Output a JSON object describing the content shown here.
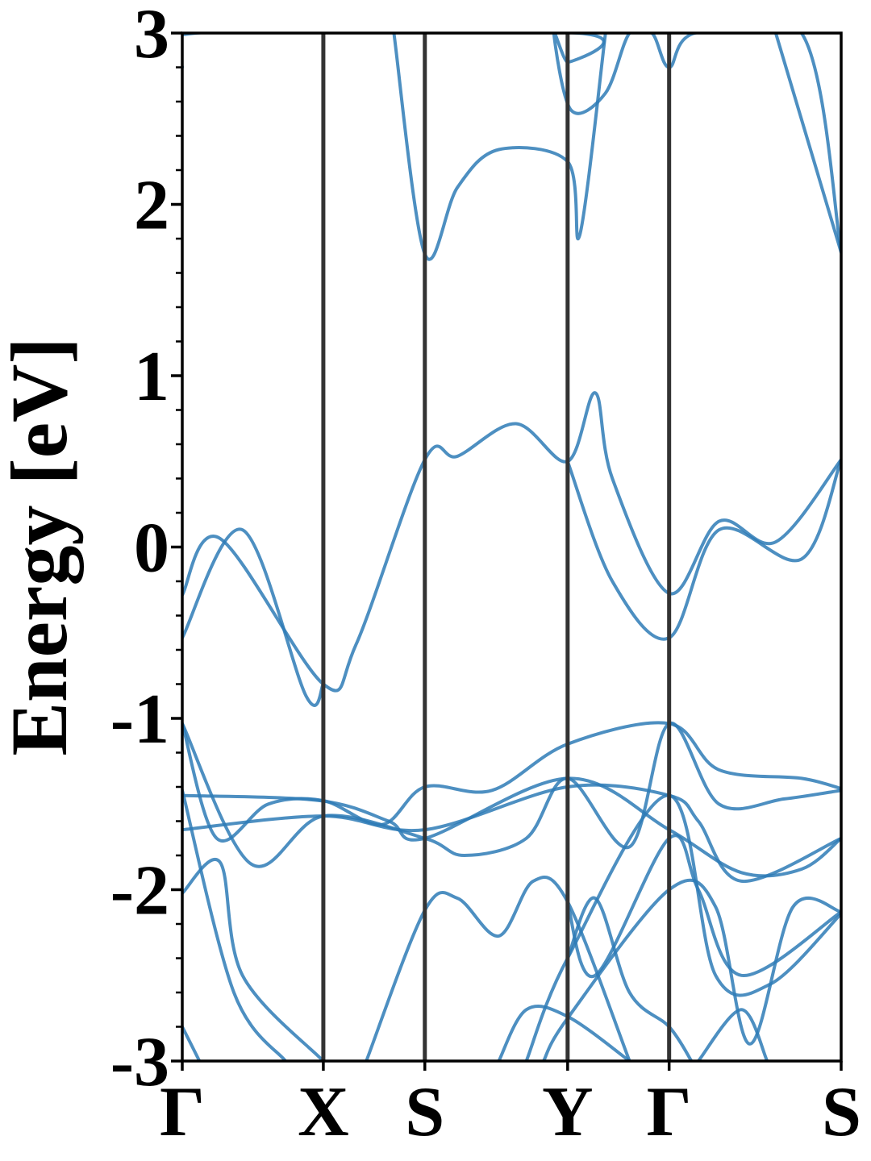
{
  "chart_data": {
    "type": "line",
    "title": "",
    "xlabel": "",
    "ylabel": "Energy [eV]",
    "ylim": [
      -3,
      3
    ],
    "yticks": [
      "3",
      "2",
      "1",
      "0",
      "-1",
      "-2",
      "-3"
    ],
    "ytick_values": [
      3,
      2,
      1,
      0,
      -1,
      -2,
      -3
    ],
    "x_range": [
      0,
      3.83
    ],
    "k_labels": [
      {
        "label": "Γ",
        "x": 0
      },
      {
        "label": "X",
        "x": 0.82
      },
      {
        "label": "S",
        "x": 1.41
      },
      {
        "label": "Y",
        "x": 2.24
      },
      {
        "label": "Γ",
        "x": 2.83
      },
      {
        "label": "S",
        "x": 3.83
      }
    ],
    "grid": false,
    "legend": "none",
    "line_color": "#2e7bb6",
    "series": [
      {
        "values": [
          [
            0.0,
            2.8
          ],
          [
            0.08,
            3.0
          ],
          [
            2.3,
            3.0
          ],
          [
            2.24,
            2.83
          ],
          [
            2.16,
            3.0
          ],
          [
            2.26,
            2.55
          ],
          [
            2.46,
            2.65
          ],
          [
            2.6,
            3.0
          ],
          [
            2.73,
            3.0
          ],
          [
            2.83,
            2.8
          ],
          [
            2.98,
            3.0
          ],
          [
            3.6,
            3.0
          ],
          [
            3.83,
            1.72
          ]
        ]
      },
      {
        "values": [
          [
            1.23,
            3.0
          ],
          [
            1.41,
            1.71
          ],
          [
            1.6,
            2.1
          ],
          [
            1.84,
            2.32
          ],
          [
            2.24,
            2.25
          ],
          [
            2.31,
            1.82
          ],
          [
            2.46,
            3.0
          ]
        ]
      },
      {
        "values": [
          [
            3.45,
            3.0
          ],
          [
            3.83,
            1.72
          ]
        ]
      },
      {
        "values": [
          [
            0.0,
            -0.28
          ],
          [
            0.22,
            0.05
          ],
          [
            0.82,
            -0.8
          ],
          [
            1.01,
            -0.57
          ],
          [
            1.41,
            0.51
          ],
          [
            1.6,
            0.53
          ],
          [
            1.94,
            0.72
          ],
          [
            2.24,
            0.5
          ],
          [
            2.4,
            0.9
          ],
          [
            2.5,
            0.4
          ],
          [
            2.83,
            -0.27
          ],
          [
            3.12,
            0.15
          ],
          [
            3.45,
            0.03
          ],
          [
            3.83,
            0.51
          ]
        ]
      },
      {
        "values": [
          [
            0.0,
            -0.53
          ],
          [
            0.35,
            0.1
          ],
          [
            0.72,
            -0.87
          ],
          [
            0.82,
            -0.8
          ]
        ]
      },
      {
        "values": [
          [
            2.24,
            0.5
          ],
          [
            2.5,
            -0.2
          ],
          [
            2.83,
            -0.53
          ],
          [
            3.12,
            0.1
          ],
          [
            3.6,
            -0.07
          ],
          [
            3.83,
            0.51
          ]
        ]
      },
      {
        "values": [
          [
            0.0,
            -1.03
          ],
          [
            0.2,
            -1.7
          ],
          [
            0.5,
            -1.5
          ],
          [
            0.82,
            -1.48
          ],
          [
            1.16,
            -1.62
          ],
          [
            1.41,
            -1.4
          ],
          [
            1.8,
            -1.42
          ],
          [
            2.24,
            -1.15
          ],
          [
            2.83,
            -1.03
          ],
          [
            3.12,
            -1.3
          ],
          [
            3.6,
            -1.35
          ],
          [
            3.83,
            -1.41
          ]
        ]
      },
      {
        "values": [
          [
            0.0,
            -1.03
          ],
          [
            0.4,
            -1.85
          ],
          [
            0.82,
            -1.57
          ],
          [
            1.41,
            -1.7
          ],
          [
            1.64,
            -1.8
          ],
          [
            2.0,
            -1.7
          ],
          [
            2.24,
            -1.35
          ],
          [
            2.6,
            -1.75
          ],
          [
            2.83,
            -1.03
          ],
          [
            3.12,
            -1.5
          ],
          [
            3.5,
            -1.47
          ],
          [
            3.83,
            -1.42
          ]
        ]
      },
      {
        "values": [
          [
            0.0,
            -1.45
          ],
          [
            0.8,
            -1.48
          ],
          [
            1.2,
            -1.6
          ],
          [
            1.41,
            -1.7
          ],
          [
            2.24,
            -1.35
          ],
          [
            2.83,
            -1.65
          ],
          [
            3.25,
            -1.9
          ],
          [
            3.6,
            -1.88
          ],
          [
            3.83,
            -1.7
          ]
        ]
      },
      {
        "values": [
          [
            0.0,
            -1.65
          ],
          [
            0.82,
            -1.57
          ],
          [
            1.41,
            -1.65
          ],
          [
            2.24,
            -1.4
          ],
          [
            2.83,
            -1.45
          ],
          [
            3.0,
            -1.6
          ],
          [
            3.25,
            -1.95
          ],
          [
            3.83,
            -1.7
          ]
        ]
      },
      {
        "values": [
          [
            0.0,
            -2.02
          ],
          [
            0.22,
            -1.84
          ],
          [
            0.35,
            -2.5
          ],
          [
            0.82,
            -3.0
          ]
        ]
      },
      {
        "values": [
          [
            0.0,
            -1.42
          ],
          [
            0.3,
            -2.6
          ],
          [
            0.6,
            -3.0
          ]
        ]
      },
      {
        "values": [
          [
            1.07,
            -3.0
          ],
          [
            1.41,
            -2.12
          ],
          [
            1.6,
            -2.05
          ],
          [
            1.84,
            -2.27
          ],
          [
            2.04,
            -1.95
          ],
          [
            2.24,
            -2.07
          ],
          [
            2.6,
            -3.0
          ]
        ]
      },
      {
        "values": [
          [
            2.24,
            -2.08
          ],
          [
            2.4,
            -2.5
          ],
          [
            2.83,
            -1.7
          ],
          [
            3.0,
            -2.0
          ],
          [
            3.25,
            -2.5
          ],
          [
            3.83,
            -2.13
          ]
        ]
      },
      {
        "values": [
          [
            2.0,
            -3.0
          ],
          [
            2.24,
            -2.4
          ],
          [
            2.83,
            -1.45
          ],
          [
            3.1,
            -2.5
          ],
          [
            3.42,
            -2.55
          ],
          [
            3.83,
            -2.14
          ]
        ]
      },
      {
        "values": [
          [
            2.24,
            -2.4
          ],
          [
            2.4,
            -2.05
          ],
          [
            2.6,
            -2.6
          ],
          [
            2.83,
            -2.8
          ],
          [
            2.96,
            -3.0
          ]
        ]
      },
      {
        "values": [
          [
            2.1,
            -3.0
          ],
          [
            2.24,
            -2.75
          ],
          [
            2.83,
            -2.0
          ],
          [
            3.1,
            -2.1
          ],
          [
            3.3,
            -2.9
          ],
          [
            3.55,
            -2.1
          ],
          [
            3.83,
            -2.13
          ]
        ]
      },
      {
        "values": [
          [
            1.84,
            -3.0
          ],
          [
            2.0,
            -2.7
          ],
          [
            2.24,
            -2.74
          ],
          [
            2.6,
            -3.0
          ]
        ]
      },
      {
        "values": [
          [
            0.0,
            -2.8
          ],
          [
            0.1,
            -3.0
          ]
        ]
      },
      {
        "values": [
          [
            3.0,
            -3.0
          ],
          [
            3.25,
            -2.7
          ],
          [
            3.4,
            -3.0
          ]
        ]
      }
    ]
  }
}
